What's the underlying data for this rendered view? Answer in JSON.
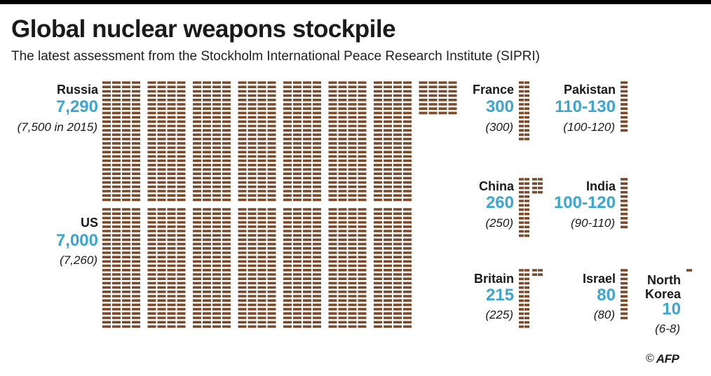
{
  "title": "Global nuclear weapons stockpile",
  "subtitle": "The latest assessment from the Stockholm International Peace Research Institute (SIPRI)",
  "credit": {
    "symbol": "©",
    "agency": "AFP"
  },
  "colors": {
    "warhead": "#7a4a2b",
    "value": "#3ba6cf",
    "text": "#1a1a1a"
  },
  "chart_data": {
    "type": "pictogram",
    "title": "Global nuclear weapons stockpile",
    "unit_per_icon": "warhead icon",
    "countries": [
      {
        "name": "Russia",
        "label": "7,290",
        "value": 7290,
        "previous": "(7,500 in 2015)"
      },
      {
        "name": "US",
        "label": "7,000",
        "value": 7000,
        "previous": "(7,260)"
      },
      {
        "name": "France",
        "label": "300",
        "value": 300,
        "previous": "(300)"
      },
      {
        "name": "China",
        "label": "260",
        "value": 260,
        "previous": "(250)"
      },
      {
        "name": "Britain",
        "label": "215",
        "value": 215,
        "previous": "(225)"
      },
      {
        "name": "Pakistan",
        "label": "110-130",
        "value": 120,
        "previous": "(100-120)"
      },
      {
        "name": "India",
        "label": "100-120",
        "value": 110,
        "previous": "(90-110)"
      },
      {
        "name": "Israel",
        "label": "80",
        "value": 80,
        "previous": "(80)"
      },
      {
        "name": "North Korea",
        "name_lines": [
          "North",
          "Korea"
        ],
        "label": "10",
        "value": 10,
        "previous": "(6-8)"
      }
    ]
  }
}
